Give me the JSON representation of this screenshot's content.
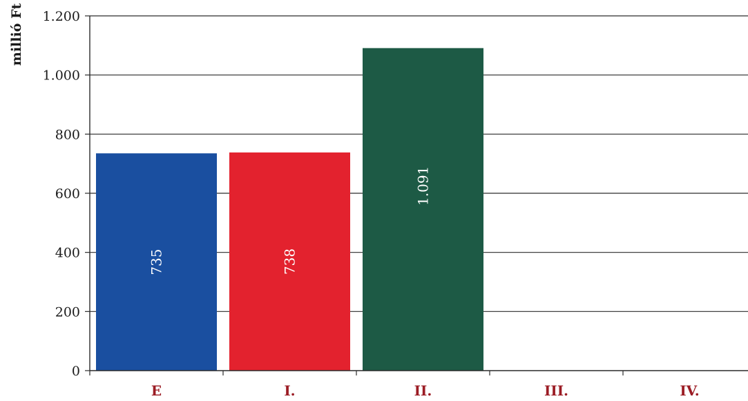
{
  "chart_data": {
    "type": "bar",
    "ylabel": "millió Ft",
    "categories": [
      "E",
      "I.",
      "II.",
      "III.",
      "IV."
    ],
    "values": [
      735,
      738,
      1091,
      null,
      null
    ],
    "value_labels": [
      "735",
      "738",
      "1.091",
      "",
      ""
    ],
    "bar_colors": [
      "#1a4fa0",
      "#e3222e",
      "#1d5a45",
      "",
      ""
    ],
    "category_label_color": "#9b1c24",
    "ylim": [
      0,
      1200
    ],
    "yticks": [
      0,
      200,
      400,
      600,
      800,
      1000,
      1200
    ],
    "ytick_labels": [
      "0",
      "200",
      "400",
      "600",
      "800",
      "1.000",
      "1.200"
    ],
    "grid": true
  }
}
